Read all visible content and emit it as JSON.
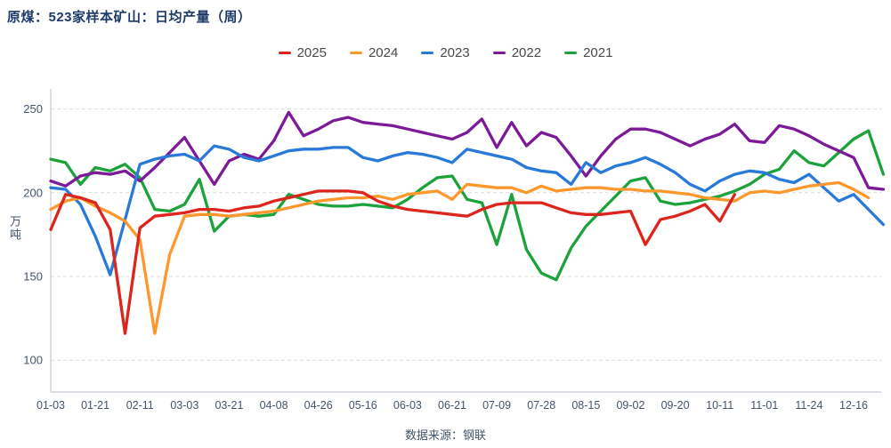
{
  "title": "原煤：523家样本矿山：日均产量（周）",
  "y_axis_unit": "万吨",
  "footer": "数据来源：钢联",
  "colors": {
    "title_text": "#1e3a68",
    "axis_text": "#44546a",
    "legend_text": "#4a4a4a",
    "grid_line": "#dcdcdc",
    "axis_line": "#c5cad3",
    "background": "#ffffff"
  },
  "chart_data": {
    "type": "line",
    "title": "原煤：523家样本矿山：日均产量（周）",
    "ylabel": "万吨",
    "xlabel": "",
    "grid": true,
    "legend_position": "top-center",
    "ylim": [
      81,
      262
    ],
    "y_ticks": [
      250,
      200,
      150,
      100
    ],
    "x_tick_labels": [
      "01-03",
      "01-21",
      "02-11",
      "03-03",
      "03-21",
      "04-08",
      "04-26",
      "05-16",
      "06-03",
      "06-21",
      "07-09",
      "07-28",
      "08-15",
      "09-02",
      "09-20",
      "10-11",
      "11-01",
      "11-24",
      "12-16"
    ],
    "points_per_tick": 3,
    "series": [
      {
        "name": "2025",
        "color": "#dc251c",
        "values": [
          178,
          199,
          197,
          194,
          178,
          116,
          179,
          186,
          187,
          188,
          190,
          190,
          189,
          191,
          192,
          195,
          197,
          199,
          201,
          201,
          201,
          200,
          195,
          192,
          190,
          189,
          188,
          187,
          186,
          190,
          193,
          194,
          194,
          194,
          191,
          188,
          187,
          187,
          188,
          189,
          169,
          184,
          186,
          189,
          193,
          183,
          199
        ]
      },
      {
        "name": "2024",
        "color": "#ff982c",
        "values": [
          190,
          195,
          197,
          192,
          188,
          183,
          172,
          116,
          163,
          186,
          187,
          187,
          186,
          187,
          188,
          189,
          191,
          193,
          195,
          196,
          197,
          197,
          198,
          196,
          199,
          200,
          201,
          196,
          205,
          204,
          203,
          203,
          200,
          204,
          201,
          202,
          203,
          203,
          202,
          202,
          201,
          201,
          200,
          199,
          197,
          196,
          195,
          200,
          201,
          200,
          202,
          204,
          205,
          206,
          202,
          197
        ]
      },
      {
        "name": "2023",
        "color": "#2879d8",
        "values": [
          203,
          202,
          193,
          174,
          151,
          184,
          217,
          220,
          222,
          223,
          219,
          228,
          226,
          221,
          219,
          222,
          225,
          226,
          226,
          227,
          227,
          221,
          219,
          222,
          224,
          223,
          221,
          218,
          226,
          224,
          222,
          220,
          215,
          213,
          212,
          205,
          218,
          212,
          216,
          218,
          221,
          217,
          212,
          205,
          201,
          207,
          211,
          213,
          212,
          208,
          206,
          211,
          203,
          195,
          199,
          190,
          181
        ]
      },
      {
        "name": "2022",
        "color": "#7c1a97",
        "values": [
          207,
          204,
          210,
          212,
          211,
          213,
          207,
          215,
          224,
          233,
          219,
          205,
          219,
          223,
          220,
          231,
          248,
          234,
          238,
          243,
          245,
          242,
          241,
          240,
          238,
          236,
          234,
          232,
          236,
          244,
          227,
          242,
          228,
          236,
          233,
          222,
          210,
          222,
          232,
          238,
          238,
          236,
          232,
          228,
          232,
          235,
          241,
          231,
          230,
          240,
          238,
          234,
          229,
          225,
          221,
          203,
          202
        ]
      },
      {
        "name": "2021",
        "color": "#1ca23a",
        "values": [
          220,
          218,
          205,
          215,
          213,
          217,
          209,
          190,
          189,
          193,
          208,
          177,
          186,
          187,
          186,
          187,
          199,
          196,
          193,
          192,
          192,
          193,
          192,
          191,
          196,
          203,
          209,
          210,
          196,
          194,
          169,
          199,
          166,
          152,
          148,
          167,
          180,
          189,
          198,
          207,
          209,
          195,
          193,
          194,
          196,
          198,
          201,
          205,
          211,
          214,
          225,
          218,
          216,
          224,
          232,
          237,
          211
        ]
      }
    ]
  }
}
